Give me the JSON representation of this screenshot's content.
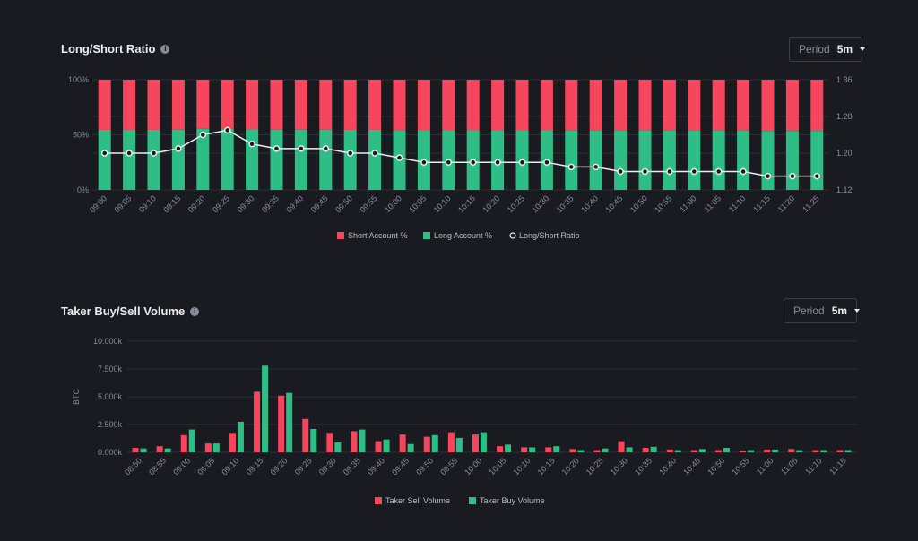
{
  "chart_data": [
    {
      "type": "bar",
      "title": "Long/Short Ratio",
      "period_label": "Period",
      "period_value": "5m",
      "categories": [
        "09:00",
        "09:05",
        "09:10",
        "09:15",
        "09:20",
        "09:25",
        "09:30",
        "09:35",
        "09:40",
        "09:45",
        "09:50",
        "09:55",
        "10:00",
        "10:05",
        "10:10",
        "10:15",
        "10:20",
        "10:25",
        "10:30",
        "10:35",
        "10:40",
        "10:45",
        "10:50",
        "10:55",
        "11:00",
        "11:05",
        "11:10",
        "11:15",
        "11:20",
        "11:25"
      ],
      "left_ticks": [
        "0%",
        "50%",
        "100%"
      ],
      "right_ticks": [
        "1.12",
        "1.20",
        "1.28",
        "1.36"
      ],
      "right_ylim": [
        1.12,
        1.36
      ],
      "series": [
        {
          "name": "Short Account %",
          "color": "#f6465d",
          "values": [
            45.5,
            45.5,
            45.5,
            45.3,
            44.6,
            44.4,
            45.1,
            45.3,
            45.3,
            45.3,
            45.5,
            45.5,
            45.7,
            45.9,
            45.9,
            45.9,
            45.9,
            45.9,
            45.9,
            46.1,
            46.1,
            46.3,
            46.3,
            46.3,
            46.3,
            46.3,
            46.3,
            46.5,
            46.5,
            46.5
          ]
        },
        {
          "name": "Long Account %",
          "color": "#2ebd85",
          "values": [
            54.5,
            54.5,
            54.5,
            54.7,
            55.4,
            55.6,
            54.9,
            54.7,
            54.7,
            54.7,
            54.5,
            54.5,
            54.3,
            54.1,
            54.1,
            54.1,
            54.1,
            54.1,
            54.1,
            53.9,
            53.9,
            53.7,
            53.7,
            53.7,
            53.7,
            53.7,
            53.7,
            53.5,
            53.5,
            53.5
          ]
        },
        {
          "name": "Long/Short Ratio",
          "color": "#eaecef",
          "values": [
            1.2,
            1.2,
            1.2,
            1.21,
            1.24,
            1.25,
            1.22,
            1.21,
            1.21,
            1.21,
            1.2,
            1.2,
            1.19,
            1.18,
            1.18,
            1.18,
            1.18,
            1.18,
            1.18,
            1.17,
            1.17,
            1.16,
            1.16,
            1.16,
            1.16,
            1.16,
            1.16,
            1.15,
            1.15,
            1.15
          ]
        }
      ],
      "legend_position": "bottom-center",
      "grid": true
    },
    {
      "type": "bar",
      "title": "Taker Buy/Sell Volume",
      "period_label": "Period",
      "period_value": "5m",
      "ylabel": "BTC",
      "y_ticks": [
        "0.000k",
        "2.500k",
        "5.000k",
        "7.500k",
        "10.000k"
      ],
      "ylim": [
        0,
        10000
      ],
      "categories": [
        "08:50",
        "08:55",
        "09:00",
        "09:05",
        "09:10",
        "09:15",
        "09:20",
        "09:25",
        "09:30",
        "09:35",
        "09:40",
        "09:45",
        "09:50",
        "09:55",
        "10:00",
        "10:05",
        "10:10",
        "10:15",
        "10:20",
        "10:25",
        "10:30",
        "10:35",
        "10:40",
        "10:45",
        "10:50",
        "10:55",
        "11:00",
        "11:05",
        "11:10",
        "11:15"
      ],
      "series": [
        {
          "name": "Taker Sell Volume",
          "color": "#f6465d",
          "values": [
            400,
            550,
            1550,
            800,
            1750,
            5450,
            5100,
            3000,
            1750,
            1900,
            1000,
            1600,
            1400,
            1800,
            1600,
            550,
            450,
            450,
            300,
            200,
            1000,
            400,
            250,
            200,
            200,
            150,
            250,
            300,
            200,
            200
          ]
        },
        {
          "name": "Taker Buy Volume",
          "color": "#2ebd85",
          "values": [
            350,
            350,
            2050,
            800,
            2750,
            7800,
            5350,
            2100,
            900,
            2050,
            1150,
            750,
            1550,
            1300,
            1800,
            700,
            450,
            550,
            200,
            350,
            450,
            500,
            200,
            300,
            400,
            200,
            250,
            200,
            200,
            200
          ]
        }
      ],
      "legend_position": "bottom-center",
      "grid": true
    }
  ]
}
